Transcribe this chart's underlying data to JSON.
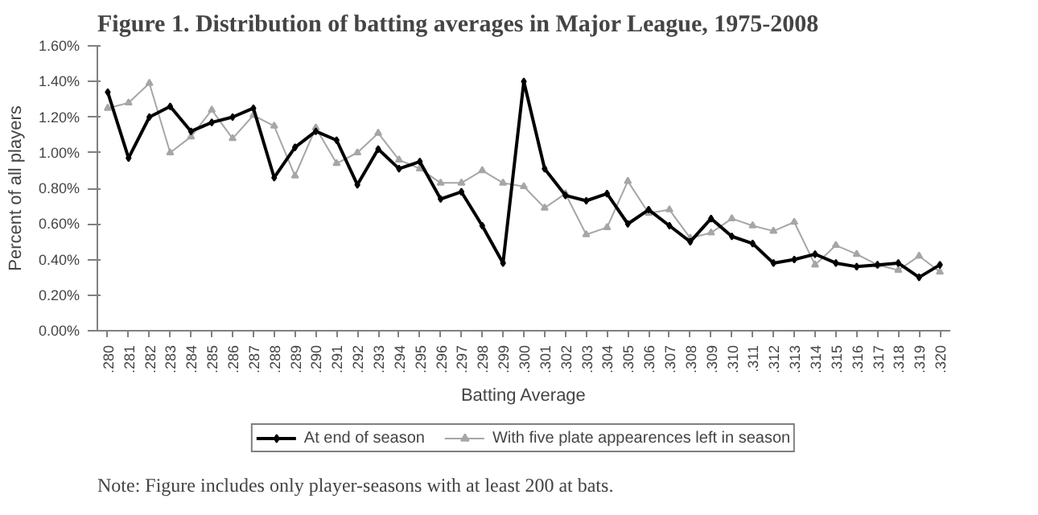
{
  "chart_data": {
    "type": "line",
    "title": "Figure 1. Distribution of batting averages in Major League, 1975-2008",
    "xlabel": "Batting Average",
    "ylabel": "Percent of all players",
    "categories": [
      ".280",
      ".281",
      ".282",
      ".283",
      ".284",
      ".285",
      ".286",
      ".287",
      ".288",
      ".289",
      ".290",
      ".291",
      ".292",
      ".293",
      ".294",
      ".295",
      ".296",
      ".297",
      ".298",
      ".299",
      ".300",
      ".301",
      ".302",
      ".303",
      ".304",
      ".305",
      ".306",
      ".307",
      ".308",
      ".309",
      ".310",
      ".311",
      ".312",
      ".313",
      ".314",
      ".315",
      ".316",
      ".317",
      ".318",
      ".319",
      ".320"
    ],
    "series": [
      {
        "name": "At end of season",
        "color": "#000000",
        "marker": "diamond",
        "values": [
          1.34,
          0.97,
          1.2,
          1.26,
          1.12,
          1.17,
          1.2,
          1.25,
          0.86,
          1.03,
          1.12,
          1.07,
          0.82,
          1.02,
          0.91,
          0.95,
          0.74,
          0.78,
          0.59,
          0.38,
          1.4,
          0.91,
          0.76,
          0.73,
          0.77,
          0.6,
          0.68,
          0.59,
          0.5,
          0.63,
          0.53,
          0.49,
          0.38,
          0.4,
          0.43,
          0.38,
          0.36,
          0.37,
          0.38,
          0.3,
          0.37
        ]
      },
      {
        "name": "With five plate appearences left in season",
        "color": "#a6a6a6",
        "marker": "triangle",
        "values": [
          1.25,
          1.28,
          1.39,
          1.0,
          1.09,
          1.24,
          1.08,
          1.21,
          1.15,
          0.87,
          1.14,
          0.94,
          1.0,
          1.11,
          0.96,
          0.91,
          0.83,
          0.83,
          0.9,
          0.83,
          0.81,
          0.69,
          0.77,
          0.54,
          0.58,
          0.84,
          0.66,
          0.68,
          0.52,
          0.55,
          0.63,
          0.59,
          0.56,
          0.61,
          0.37,
          0.48,
          0.43,
          0.37,
          0.34,
          0.42,
          0.33
        ]
      }
    ],
    "ylim": [
      0,
      1.6
    ],
    "yticks": [
      {
        "value": 0,
        "label": "0.00%"
      },
      {
        "value": 0.2,
        "label": "0.20%"
      },
      {
        "value": 0.4,
        "label": "0.40%"
      },
      {
        "value": 0.6,
        "label": "0.60%"
      },
      {
        "value": 0.8,
        "label": "0.80%"
      },
      {
        "value": 1.0,
        "label": "1.00%"
      },
      {
        "value": 1.2,
        "label": "1.20%"
      },
      {
        "value": 1.4,
        "label": "1.40%"
      },
      {
        "value": 1.6,
        "label": "1.60%"
      }
    ],
    "grid": false,
    "legend": "bottom",
    "line_style": "solid",
    "annotations": [
      "Note: Figure includes only player-seasons with at least 200 at bats."
    ]
  }
}
